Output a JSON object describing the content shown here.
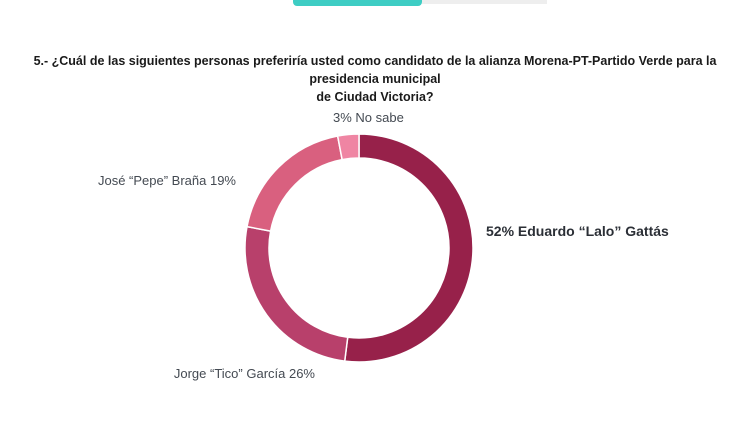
{
  "header": {
    "title_line1": "5.- ¿Cuál de las siguientes personas preferiría usted como candidato de la alianza Morena-PT-Partido Verde para la presidencia municipal",
    "title_line2": "de Ciudad Victoria?"
  },
  "chart_data": {
    "type": "pie",
    "donut": true,
    "title": "5.- ¿Cuál de las siguientes personas preferiría usted como candidato de la alianza Morena-PT-Partido Verde para la presidencia municipal de Ciudad Victoria?",
    "slices": [
      {
        "label": "Eduardo “Lalo” Gattás",
        "value": 52,
        "display": "52%",
        "color": "#97214a"
      },
      {
        "label": "Jorge “Tico” García",
        "value": 26,
        "display": "26%",
        "color": "#b8406b"
      },
      {
        "label": "José “Pepe” Braña",
        "value": 19,
        "display": "19%",
        "color": "#d9607f"
      },
      {
        "label": "No sabe",
        "value": 3,
        "display": "3%",
        "color": "#ef85a3"
      }
    ]
  }
}
